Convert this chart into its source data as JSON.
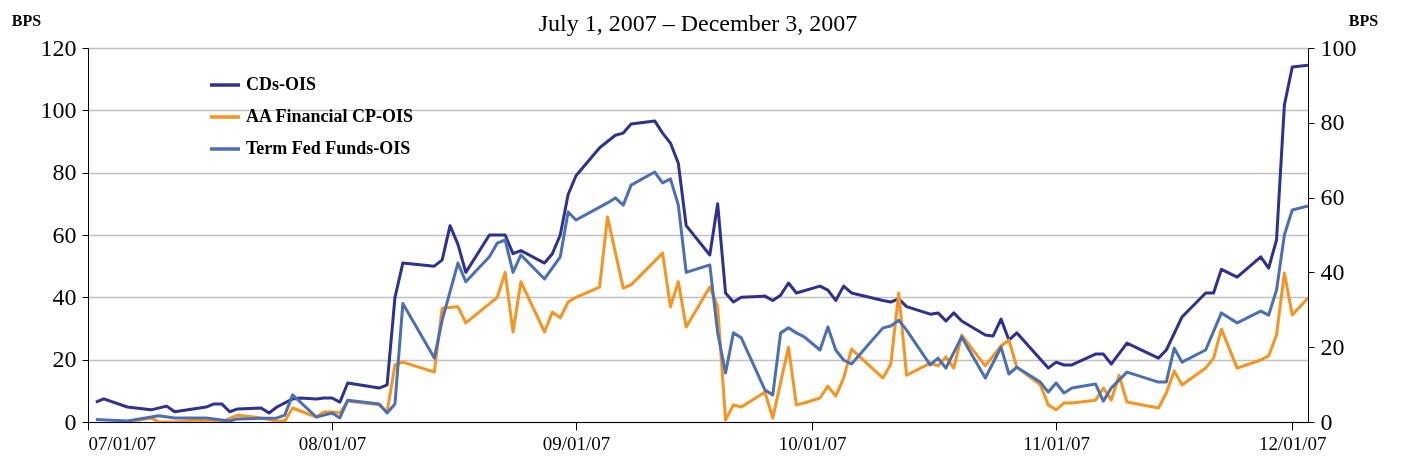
{
  "chart_data": {
    "type": "line",
    "title": "July 1, 2007 – December 3, 2007",
    "ylabel": "BPS",
    "y2label": "BPS",
    "xlim": [
      "2007-07-01",
      "2007-12-03"
    ],
    "xticks": [
      {
        "value": "2007-07-01",
        "label": "07/01/07"
      },
      {
        "value": "2007-08-01",
        "label": "08/01/07"
      },
      {
        "value": "2007-09-01",
        "label": "09/01/07"
      },
      {
        "value": "2007-10-01",
        "label": "10/01/07"
      },
      {
        "value": "2007-11-01",
        "label": "11/01/07"
      },
      {
        "value": "2007-12-01",
        "label": "12/01/07"
      }
    ],
    "ylim": [
      0,
      120
    ],
    "yticks": [
      0,
      20,
      40,
      60,
      80,
      100,
      120
    ],
    "y2lim": [
      0,
      100
    ],
    "y2ticks": [
      0,
      20,
      40,
      60,
      80,
      100
    ],
    "grid": "y",
    "legend": "top left",
    "marker": "none",
    "line_style": "solid",
    "series": [
      {
        "name": "CDs-OIS",
        "color": "#2e3192",
        "x": [
          "2007-07-02",
          "2007-07-03",
          "2007-07-06",
          "2007-07-09",
          "2007-07-11",
          "2007-07-12",
          "2007-07-16",
          "2007-07-17",
          "2007-07-18",
          "2007-07-19",
          "2007-07-20",
          "2007-07-23",
          "2007-07-24",
          "2007-07-25",
          "2007-07-27",
          "2007-07-28",
          "2007-07-30",
          "2007-07-31",
          "2007-08-01",
          "2007-08-02",
          "2007-08-03",
          "2007-08-07",
          "2007-08-08",
          "2007-08-09",
          "2007-08-10",
          "2007-08-14",
          "2007-08-15",
          "2007-08-16",
          "2007-08-17",
          "2007-08-18",
          "2007-08-21",
          "2007-08-23",
          "2007-08-24",
          "2007-08-25",
          "2007-08-28",
          "2007-08-29",
          "2007-08-30",
          "2007-08-31",
          "2007-09-01",
          "2007-09-04",
          "2007-09-06",
          "2007-09-07",
          "2007-09-08",
          "2007-09-11",
          "2007-09-12",
          "2007-09-13",
          "2007-09-14",
          "2007-09-15",
          "2007-09-18",
          "2007-09-19",
          "2007-09-20",
          "2007-09-21",
          "2007-09-22",
          "2007-09-25",
          "2007-09-26",
          "2007-09-27",
          "2007-09-28",
          "2007-09-29",
          "2007-10-02",
          "2007-10-03",
          "2007-10-04",
          "2007-10-05",
          "2007-10-06",
          "2007-10-10",
          "2007-10-11",
          "2007-10-12",
          "2007-10-13",
          "2007-10-16",
          "2007-10-17",
          "2007-10-18",
          "2007-10-19",
          "2007-10-20",
          "2007-10-23",
          "2007-10-24",
          "2007-10-25",
          "2007-10-26",
          "2007-10-27",
          "2007-10-31",
          "2007-11-01",
          "2007-11-02",
          "2007-11-03",
          "2007-11-06",
          "2007-11-07",
          "2007-11-08",
          "2007-11-10",
          "2007-11-14",
          "2007-11-15",
          "2007-11-17",
          "2007-11-20",
          "2007-11-21",
          "2007-11-22",
          "2007-11-24",
          "2007-11-27",
          "2007-11-28",
          "2007-11-29",
          "2007-11-30",
          "2007-12-01",
          "2007-12-03"
        ],
        "values": [
          6.4,
          7.4,
          4.8,
          3.9,
          5.1,
          3.3,
          4.8,
          5.8,
          5.8,
          3.3,
          4.2,
          4.5,
          2.9,
          4.8,
          7.4,
          7.7,
          7.4,
          7.7,
          7.7,
          6.4,
          12.5,
          10.9,
          11.9,
          40,
          51,
          50,
          52,
          63,
          57,
          48,
          60,
          60,
          54,
          55,
          51,
          54,
          60,
          73,
          79,
          88,
          92,
          92.7,
          95.6,
          96.6,
          92.7,
          89.5,
          83,
          63,
          53.6,
          70,
          41.4,
          38.5,
          40,
          40.4,
          39,
          40.7,
          44.6,
          41.4,
          43.6,
          42.3,
          39,
          43.6,
          41.4,
          39,
          38.5,
          39.5,
          37,
          34.6,
          35,
          32.4,
          35,
          32.4,
          27.9,
          27.6,
          33,
          26.3,
          28.6,
          17.3,
          19.2,
          18.3,
          18.3,
          21.8,
          21.8,
          18.6,
          25.3,
          20.5,
          23.1,
          33.7,
          41.4,
          41.4,
          49,
          46.5,
          53,
          49.4,
          58.4,
          101.7,
          113.9,
          114.5
        ]
      },
      {
        "name": "AA Financial CP-OIS",
        "color": "#f7941d",
        "x": [
          "2007-07-06",
          "2007-07-09",
          "2007-07-10",
          "2007-07-12",
          "2007-07-15",
          "2007-07-18",
          "2007-07-20",
          "2007-07-23",
          "2007-07-25",
          "2007-07-26",
          "2007-07-27",
          "2007-07-30",
          "2007-07-31",
          "2007-08-01",
          "2007-08-02",
          "2007-08-03",
          "2007-08-07",
          "2007-08-08",
          "2007-08-09",
          "2007-08-10",
          "2007-08-14",
          "2007-08-15",
          "2007-08-17",
          "2007-08-18",
          "2007-08-22",
          "2007-08-23",
          "2007-08-24",
          "2007-08-25",
          "2007-08-28",
          "2007-08-29",
          "2007-08-30",
          "2007-08-31",
          "2007-09-01",
          "2007-09-04",
          "2007-09-05",
          "2007-09-07",
          "2007-09-08",
          "2007-09-12",
          "2007-09-13",
          "2007-09-14",
          "2007-09-15",
          "2007-09-18",
          "2007-09-19",
          "2007-09-20",
          "2007-09-21",
          "2007-09-22",
          "2007-09-25",
          "2007-09-26",
          "2007-09-28",
          "2007-09-29",
          "2007-09-30",
          "2007-10-02",
          "2007-10-03",
          "2007-10-04",
          "2007-10-05",
          "2007-10-06",
          "2007-10-10",
          "2007-10-11",
          "2007-10-12",
          "2007-10-13",
          "2007-10-16",
          "2007-10-17",
          "2007-10-18",
          "2007-10-19",
          "2007-10-20",
          "2007-10-23",
          "2007-10-25",
          "2007-10-26",
          "2007-10-27",
          "2007-10-30",
          "2007-10-31",
          "2007-11-01",
          "2007-11-02",
          "2007-11-03",
          "2007-11-06",
          "2007-11-07",
          "2007-11-08",
          "2007-11-09",
          "2007-11-10",
          "2007-11-14",
          "2007-11-15",
          "2007-11-16",
          "2007-11-17",
          "2007-11-20",
          "2007-11-21",
          "2007-11-22",
          "2007-11-24",
          "2007-11-27",
          "2007-11-28",
          "2007-11-29",
          "2007-11-30",
          "2007-12-01",
          "2007-12-03"
        ],
        "values": [
          0,
          1.3,
          0,
          0,
          0.6,
          0,
          2.2,
          1.3,
          0.3,
          0.3,
          4.5,
          1.6,
          3.2,
          3.2,
          2.9,
          6.7,
          5.5,
          3.2,
          18.3,
          19.2,
          16,
          36.6,
          37,
          31.8,
          40,
          48,
          28.9,
          45,
          28.9,
          35.3,
          33.4,
          38.5,
          40,
          43.3,
          65.8,
          43,
          44,
          54.2,
          37,
          45,
          30.5,
          43.3,
          37,
          0.6,
          5.5,
          4.8,
          9.6,
          1.3,
          24,
          5.5,
          6.1,
          7.7,
          11.5,
          8.3,
          14.1,
          23.4,
          14.1,
          18.6,
          41.4,
          15,
          18.9,
          18,
          20.9,
          17.3,
          27.9,
          18,
          24.4,
          26.3,
          17.6,
          11.9,
          5.5,
          3.9,
          6.1,
          6.1,
          7,
          10.9,
          7,
          15,
          6.4,
          4.5,
          9.3,
          16.4,
          11.9,
          17.3,
          20.5,
          29.8,
          17.3,
          19.9,
          21.2,
          27.9,
          47.8,
          34.3,
          39.8
        ]
      },
      {
        "name": "Term Fed Funds-OIS",
        "color": "#4a6fb5",
        "x": [
          "2007-07-02",
          "2007-07-06",
          "2007-07-10",
          "2007-07-12",
          "2007-07-16",
          "2007-07-19",
          "2007-07-20",
          "2007-07-25",
          "2007-07-26",
          "2007-07-27",
          "2007-07-30",
          "2007-07-31",
          "2007-08-01",
          "2007-08-02",
          "2007-08-03",
          "2007-08-07",
          "2007-08-08",
          "2007-08-09",
          "2007-08-10",
          "2007-08-14",
          "2007-08-15",
          "2007-08-17",
          "2007-08-18",
          "2007-08-21",
          "2007-08-22",
          "2007-08-23",
          "2007-08-24",
          "2007-08-25",
          "2007-08-28",
          "2007-08-30",
          "2007-08-31",
          "2007-09-01",
          "2007-09-05",
          "2007-09-06",
          "2007-09-07",
          "2007-09-08",
          "2007-09-11",
          "2007-09-12",
          "2007-09-13",
          "2007-09-14",
          "2007-09-15",
          "2007-09-18",
          "2007-09-19",
          "2007-09-20",
          "2007-09-21",
          "2007-09-22",
          "2007-09-25",
          "2007-09-26",
          "2007-09-27",
          "2007-09-28",
          "2007-09-29",
          "2007-09-30",
          "2007-10-02",
          "2007-10-03",
          "2007-10-04",
          "2007-10-05",
          "2007-10-06",
          "2007-10-10",
          "2007-10-11",
          "2007-10-12",
          "2007-10-13",
          "2007-10-16",
          "2007-10-17",
          "2007-10-18",
          "2007-10-20",
          "2007-10-23",
          "2007-10-25",
          "2007-10-26",
          "2007-10-27",
          "2007-10-30",
          "2007-10-31",
          "2007-11-01",
          "2007-11-02",
          "2007-11-03",
          "2007-11-06",
          "2007-11-07",
          "2007-11-08",
          "2007-11-10",
          "2007-11-14",
          "2007-11-15",
          "2007-11-16",
          "2007-11-17",
          "2007-11-20",
          "2007-11-22",
          "2007-11-24",
          "2007-11-27",
          "2007-11-28",
          "2007-11-29",
          "2007-11-30",
          "2007-12-01",
          "2007-12-03"
        ],
        "values": [
          0.8,
          0.3,
          2,
          1.3,
          1.3,
          0.3,
          1,
          1.3,
          2.2,
          8.7,
          1.6,
          2.2,
          2.9,
          1.3,
          7,
          5.8,
          2.9,
          5.8,
          38,
          20.5,
          32.7,
          51,
          45,
          53,
          57.4,
          58.4,
          48,
          53.6,
          45.9,
          53,
          67.4,
          64.8,
          70.3,
          71.9,
          69.6,
          76,
          80.2,
          76.7,
          78,
          69.6,
          48,
          50.4,
          28.6,
          15.7,
          28.6,
          27,
          10.3,
          8.7,
          28.6,
          30.2,
          28.6,
          27.3,
          23.1,
          30.5,
          23.1,
          19.9,
          18.6,
          30.2,
          30.8,
          32.7,
          29.5,
          18.3,
          20.5,
          17.3,
          27.3,
          14.1,
          24,
          15.4,
          17.6,
          12.8,
          9.6,
          12.5,
          9.3,
          10.9,
          12.2,
          6.7,
          10.9,
          16,
          12.8,
          12.8,
          23.7,
          19.2,
          23.1,
          35,
          31.8,
          35.6,
          34.3,
          42.3,
          60,
          68,
          69.3
        ]
      }
    ]
  }
}
